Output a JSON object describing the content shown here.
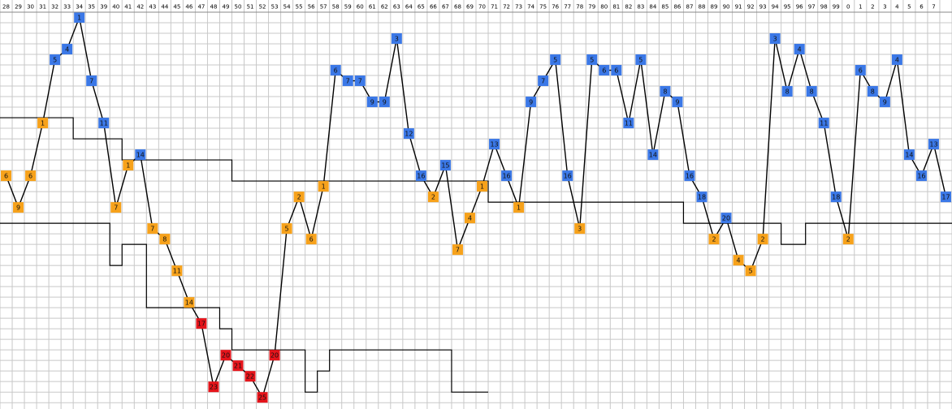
{
  "chart_data": {
    "type": "line",
    "categories": [
      "28",
      "29",
      "30",
      "31",
      "32",
      "33",
      "34",
      "35",
      "39",
      "40",
      "41",
      "42",
      "43",
      "44",
      "45",
      "46",
      "47",
      "48",
      "49",
      "50",
      "51",
      "52",
      "53",
      "54",
      "55",
      "56",
      "57",
      "58",
      "59",
      "60",
      "61",
      "62",
      "63",
      "64",
      "65",
      "66",
      "67",
      "68",
      "69",
      "70",
      "71",
      "72",
      "73",
      "74",
      "75",
      "76",
      "77",
      "78",
      "79",
      "80",
      "81",
      "82",
      "83",
      "84",
      "85",
      "86",
      "87",
      "88",
      "89",
      "90",
      "91",
      "92",
      "93",
      "94",
      "95",
      "96",
      "97",
      "98",
      "99",
      "0",
      "1",
      "2",
      "3",
      "4",
      "5",
      "6",
      "7",
      null
    ],
    "values": [
      15,
      18,
      15,
      10,
      4,
      3,
      0,
      6,
      10,
      18,
      14,
      13,
      20,
      21,
      24,
      27,
      29,
      35,
      32,
      33,
      34,
      36,
      32,
      20,
      17,
      21,
      16,
      5,
      6,
      6,
      8,
      8,
      2,
      11,
      15,
      17,
      14,
      22,
      19,
      16,
      12,
      15,
      18,
      8,
      6,
      4,
      15,
      20,
      4,
      5,
      5,
      10,
      4,
      13,
      7,
      8,
      15,
      17,
      21,
      19,
      23,
      24,
      21,
      2,
      7,
      3,
      7,
      10,
      17,
      21,
      5,
      7,
      8,
      4,
      13,
      15,
      12,
      17
    ],
    "point_labels": [
      "6",
      "9",
      "6",
      "1",
      "5",
      "4",
      "1",
      "7",
      "11",
      "7",
      "1",
      "14",
      "7",
      "8",
      "11",
      "14",
      "17",
      "23",
      "20",
      "21",
      "22",
      "25",
      "20",
      "5",
      "2",
      "6",
      "1",
      "6",
      "7",
      "7",
      "9",
      "9",
      "3",
      "12",
      "16",
      "2",
      "15",
      "7",
      "4",
      "1",
      "13",
      "16",
      "1",
      "9",
      "7",
      "5",
      "16",
      "3",
      "5",
      "6",
      "6",
      "11",
      "5",
      "14",
      "8",
      "9",
      "16",
      "18",
      "2",
      "20",
      "4",
      "5",
      "2",
      "3",
      "8",
      "4",
      "8",
      "11",
      "18",
      "2",
      "6",
      "8",
      "9",
      "4",
      "14",
      "16",
      "13",
      "17"
    ],
    "colors": [
      "#f7a21b",
      "#f7a21b",
      "#f7a21b",
      "#f7a21b",
      "#3b78e7",
      "#3b78e7",
      "#3b78e7",
      "#3b78e7",
      "#3b78e7",
      "#f7a21b",
      "#f7a21b",
      "#3b78e7",
      "#f7a21b",
      "#f7a21b",
      "#f7a21b",
      "#f7a21b",
      "#e5141b",
      "#e5141b",
      "#e5141b",
      "#e5141b",
      "#e5141b",
      "#e5141b",
      "#e5141b",
      "#f7a21b",
      "#f7a21b",
      "#f7a21b",
      "#f7a21b",
      "#3b78e7",
      "#3b78e7",
      "#3b78e7",
      "#3b78e7",
      "#3b78e7",
      "#3b78e7",
      "#3b78e7",
      "#3b78e7",
      "#f7a21b",
      "#3b78e7",
      "#f7a21b",
      "#f7a21b",
      "#f7a21b",
      "#3b78e7",
      "#3b78e7",
      "#f7a21b",
      "#3b78e7",
      "#3b78e7",
      "#3b78e7",
      "#3b78e7",
      "#f7a21b",
      "#3b78e7",
      "#3b78e7",
      "#3b78e7",
      "#3b78e7",
      "#3b78e7",
      "#3b78e7",
      "#3b78e7",
      "#3b78e7",
      "#3b78e7",
      "#3b78e7",
      "#f7a21b",
      "#3b78e7",
      "#f7a21b",
      "#f7a21b",
      "#f7a21b",
      "#3b78e7",
      "#3b78e7",
      "#3b78e7",
      "#3b78e7",
      "#3b78e7",
      "#3b78e7",
      "#f7a21b",
      "#3b78e7",
      "#3b78e7",
      "#3b78e7",
      "#3b78e7",
      "#3b78e7",
      "#3b78e7",
      "#3b78e7",
      "#3b78e7"
    ],
    "line_color": "#000000",
    "steps": [
      {
        "values": [
          9.5,
          9.5,
          9.5,
          9.5,
          9.5,
          9.5,
          11.5,
          11.5,
          11.5,
          11.5,
          13.5,
          13.5,
          13.5,
          13.5,
          13.5,
          13.5,
          13.5,
          13.5,
          13.5,
          15.5,
          15.5,
          15.5,
          15.5,
          15.5,
          15.5,
          15.5,
          15.5,
          15.5,
          15.5,
          15.5,
          15.5,
          15.5,
          15.5,
          15.5,
          15.5,
          15.5,
          15.5,
          15.5,
          15.5,
          15.5,
          17.5,
          17.5,
          17.5,
          17.5,
          17.5,
          17.5,
          17.5,
          17.5,
          17.5,
          17.5,
          17.5,
          17.5,
          17.5,
          17.5,
          17.5,
          17.5,
          19.5,
          19.5,
          19.5,
          19.5,
          19.5,
          19.5,
          19.5,
          19.5,
          21.5,
          21.5,
          19.5,
          19.5,
          19.5,
          19.5,
          19.5,
          19.5,
          19.5,
          19.5,
          19.5,
          19.5,
          19.5,
          19.5
        ]
      },
      {
        "values": [
          19.5,
          19.5,
          19.5,
          19.5,
          19.5,
          19.5,
          19.5,
          19.5,
          19.5,
          23.5,
          21.5,
          21.5,
          27.5,
          27.5,
          27.5,
          27.5,
          27.5,
          27.5,
          29.5,
          31.5,
          31.5,
          31.5,
          31.5,
          31.5,
          31.5,
          35.5,
          33.5,
          31.5,
          31.5,
          31.5,
          31.5,
          31.5,
          31.5,
          31.5,
          31.5,
          31.5,
          31.5,
          35.5,
          35.5,
          35.5,
          null,
          null,
          null,
          null,
          null,
          null,
          null,
          null,
          null,
          null,
          null,
          null,
          null,
          null,
          null,
          null,
          null,
          null,
          null,
          null,
          null,
          null,
          null,
          null,
          null,
          null,
          null,
          null,
          null,
          null,
          null,
          null,
          null,
          null,
          null,
          null,
          null,
          null
        ]
      }
    ],
    "ylim": [
      -0.5,
      37.1
    ],
    "grid": true
  }
}
